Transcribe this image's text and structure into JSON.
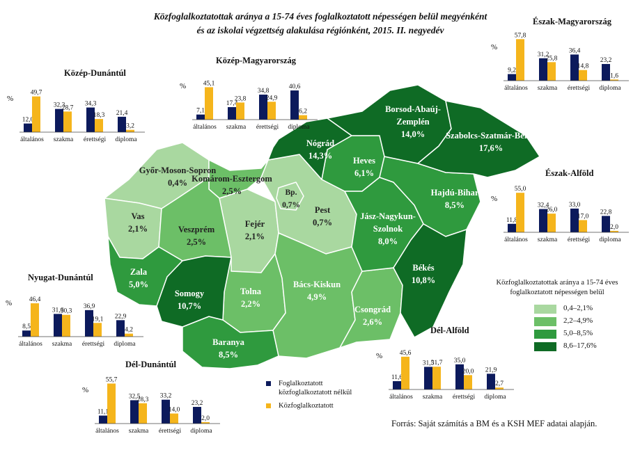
{
  "title": {
    "line1": "Közfoglalkoztatottak aránya a 15-74 éves foglalkoztatott népességen belül megyénként",
    "line2": "és az iskolai végzettség alakulása régiónként, 2015. II. negyedév"
  },
  "colors": {
    "class1": "#a9d8a0",
    "class2": "#6cbf67",
    "class3": "#2f9a3e",
    "class4": "#0f6b25",
    "series_nelkul": "#0c1a5c",
    "series_koz": "#f5b51c"
  },
  "counties": [
    {
      "name": "Győr-Moson-Sopron",
      "value": "0,4%",
      "class": 1
    },
    {
      "name": "Komárom-Esztergom",
      "value": "2,5%",
      "class": 2
    },
    {
      "name": "Vas",
      "value": "2,1%",
      "class": 1
    },
    {
      "name": "Veszprém",
      "value": "2,5%",
      "class": 2
    },
    {
      "name": "Fejér",
      "value": "2,1%",
      "class": 1
    },
    {
      "name": "Bp.",
      "value": "0,7%",
      "class": 1
    },
    {
      "name": "Pest",
      "value": "0,7%",
      "class": 1
    },
    {
      "name": "Nógrád",
      "value": "14,3%",
      "class": 4
    },
    {
      "name": "Heves",
      "value": "6,1%",
      "class": 3
    },
    {
      "name": "Borsod-Abaúj-Zemplén",
      "value": "14,0%",
      "class": 4
    },
    {
      "name": "Szabolcs-Szatmár-Bereg",
      "value": "17,6%",
      "class": 4
    },
    {
      "name": "Hajdú-Bihar",
      "value": "8,5%",
      "class": 3
    },
    {
      "name": "Jász-Nagykun-Szolnok",
      "value": "8,0%",
      "class": 3
    },
    {
      "name": "Békés",
      "value": "10,8%",
      "class": 4
    },
    {
      "name": "Csongrád",
      "value": "2,6%",
      "class": 2
    },
    {
      "name": "Bács-Kiskun",
      "value": "4,9%",
      "class": 2
    },
    {
      "name": "Tolna",
      "value": "2,2%",
      "class": 2
    },
    {
      "name": "Baranya",
      "value": "8,5%",
      "class": 3
    },
    {
      "name": "Somogy",
      "value": "10,7%",
      "class": 4
    },
    {
      "name": "Zala",
      "value": "5,0%",
      "class": 3
    }
  ],
  "chart_data": {
    "type": "bar",
    "unit_label": "%",
    "categories": [
      "általános",
      "szakma",
      "érettségi",
      "diploma"
    ],
    "series_names": [
      "Foglalkoztatott közfoglalkoztatott nélkül",
      "Közfoglalkoztatott"
    ],
    "regions": [
      {
        "title": "Közép-Dunántúl",
        "values_nelkul": [
          12.0,
          32.3,
          34.3,
          21.4
        ],
        "values_koz": [
          49.7,
          28.7,
          18.3,
          3.2
        ],
        "labels_nelkul": [
          "12,0",
          "32,3",
          "34,3",
          "21,4"
        ],
        "labels_koz": [
          "49,7",
          "28,7",
          "18,3",
          "3,2"
        ]
      },
      {
        "title": "Közép-Magyarország",
        "values_nelkul": [
          7.1,
          17.4,
          34.8,
          40.6
        ],
        "values_koz": [
          45.1,
          23.8,
          24.9,
          6.2
        ],
        "labels_nelkul": [
          "7,1",
          "17,4",
          "34,8",
          "40,6"
        ],
        "labels_koz": [
          "45,1",
          "23,8",
          "24,9",
          "6,2"
        ]
      },
      {
        "title": "Észak-Magyarország",
        "values_nelkul": [
          9.2,
          31.2,
          36.4,
          23.2
        ],
        "values_koz": [
          57.8,
          25.8,
          14.8,
          1.6
        ],
        "labels_nelkul": [
          "9,2",
          "31,2",
          "36,4",
          "23,2"
        ],
        "labels_koz": [
          "57,8",
          "25,8",
          "14,8",
          "1,6"
        ]
      },
      {
        "title": "Észak-Alföld",
        "values_nelkul": [
          11.8,
          32.4,
          33.0,
          22.8
        ],
        "values_koz": [
          55.0,
          26.0,
          17.0,
          2.0
        ],
        "labels_nelkul": [
          "11,8",
          "32,4",
          "33,0",
          "22,8"
        ],
        "labels_koz": [
          "55,0",
          "26,0",
          "17,0",
          "2,0"
        ]
      },
      {
        "title": "Nyugat-Dunántúl",
        "values_nelkul": [
          8.5,
          31.6,
          36.9,
          22.9
        ],
        "values_koz": [
          46.4,
          30.3,
          19.1,
          4.2
        ],
        "labels_nelkul": [
          "8,5",
          "31,6",
          "36,9",
          "22,9"
        ],
        "labels_koz": [
          "46,4",
          "30,3",
          "19,1",
          "4,2"
        ]
      },
      {
        "title": "Dél-Alföld",
        "values_nelkul": [
          11.6,
          31.5,
          35.0,
          21.9
        ],
        "values_koz": [
          45.6,
          31.7,
          20.0,
          2.7
        ],
        "labels_nelkul": [
          "11,6",
          "31,5",
          "35,0",
          "21,9"
        ],
        "labels_koz": [
          "45,6",
          "31,7",
          "20,0",
          "2,7"
        ]
      },
      {
        "title": "Dél-Dunántúl",
        "values_nelkul": [
          11.1,
          32.5,
          33.2,
          23.2
        ],
        "values_koz": [
          55.7,
          28.3,
          14.0,
          2.0
        ],
        "labels_nelkul": [
          "11,1",
          "32,5",
          "33,2",
          "23,2"
        ],
        "labels_koz": [
          "55,7",
          "28,3",
          "14,0",
          "2,0"
        ]
      }
    ]
  },
  "legend": {
    "title": "Közfoglalkoztatottak aránya a 15-74 éves foglalkoztatott népességen belül",
    "classes": [
      "0,4–2,1%",
      "2,2–4,9%",
      "5,0–8,5%",
      "8,6–17,6%"
    ]
  },
  "series_legend": {
    "nelkul": "Foglalkoztatott közfoglalkoztatott nélkül",
    "koz": "Közfoglalkoztatott"
  },
  "source": "Forrás: Saját számítás a BM és a KSH MEF adatai alapján."
}
